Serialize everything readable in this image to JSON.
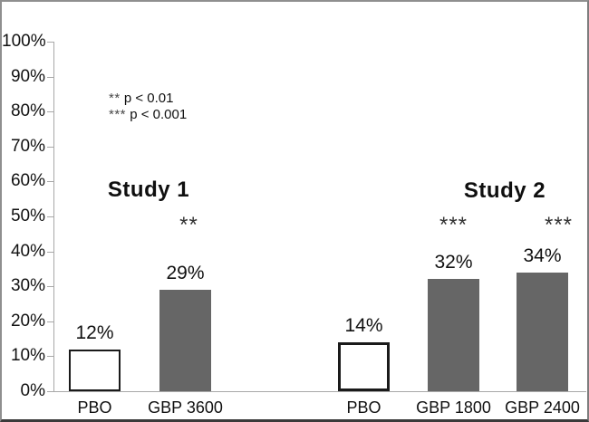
{
  "figure": {
    "background": "#ffffff",
    "border_color": "#8f8f8f"
  },
  "chart_data": {
    "type": "bar",
    "title": "",
    "xlabel": "",
    "ylabel": "",
    "ylim": [
      0,
      100
    ],
    "grid": false,
    "legend_position": "none",
    "y_axis": {
      "ticks": [
        {
          "label": "0%",
          "value": 0
        },
        {
          "label": "10%",
          "value": 10
        },
        {
          "label": "20%",
          "value": 20
        },
        {
          "label": "30%",
          "value": 30
        },
        {
          "label": "40%",
          "value": 40
        },
        {
          "label": "50%",
          "value": 50
        },
        {
          "label": "60%",
          "value": 60
        },
        {
          "label": "70%",
          "value": 70
        },
        {
          "label": "80%",
          "value": 80
        },
        {
          "label": "90%",
          "value": 90
        },
        {
          "label": "100%",
          "value": 100
        }
      ]
    },
    "groups": [
      {
        "name": "Study 1",
        "bars": [
          {
            "category": "PBO",
            "value": 12,
            "data_label": "12%",
            "style": "placebo",
            "significance": ""
          },
          {
            "category": "GBP 3600",
            "value": 29,
            "data_label": "29%",
            "style": "treatment",
            "significance": "**"
          }
        ]
      },
      {
        "name": "Study 2",
        "bars": [
          {
            "category": "PBO",
            "value": 14,
            "data_label": "14%",
            "style": "placebo",
            "significance": ""
          },
          {
            "category": "GBP 1800",
            "value": 32,
            "data_label": "32%",
            "style": "treatment",
            "significance": "***"
          },
          {
            "category": "GBP 2400",
            "value": 34,
            "data_label": "34%",
            "style": "treatment",
            "significance": "***"
          }
        ]
      }
    ],
    "significance_notes": [
      {
        "symbol": "**",
        "text": "p < 0.01"
      },
      {
        "symbol": "***",
        "text": "p < 0.001"
      }
    ],
    "colors": {
      "treatment_bar": "#666666",
      "placebo_bar": "#ffffff",
      "bar_outline": "#1a1a1a",
      "axis_line": "#a8a8a8",
      "text": "#111111"
    }
  }
}
